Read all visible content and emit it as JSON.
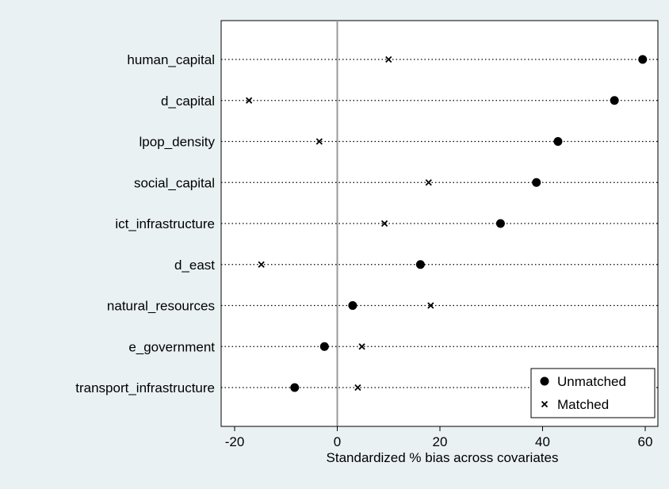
{
  "chart_data": {
    "type": "scatter",
    "title": "",
    "xlabel": "Standardized % bias across covariates",
    "ylabel": "",
    "xlim": [
      -23,
      62
    ],
    "xticks": [
      -20,
      0,
      20,
      40,
      60
    ],
    "grid": false,
    "reference_line_x": 0,
    "legend_position": "bottom-right",
    "categories": [
      "human_capital",
      "d_capital",
      "lpop_density",
      "social_capital",
      "ict_infrastructure",
      "d_east",
      "natural_resources",
      "e_government",
      "transport_infrastructure"
    ],
    "series": [
      {
        "name": "Unmatched",
        "marker": "filled-circle",
        "color": "#000000",
        "values": [
          59.5,
          54,
          43,
          38.8,
          31.8,
          16.2,
          3,
          -2.5,
          -8.3
        ]
      },
      {
        "name": "Matched",
        "marker": "x",
        "color": "#000000",
        "values": [
          10,
          -17.2,
          -3.5,
          17.8,
          9.2,
          -14.8,
          18.2,
          4.8,
          4
        ]
      }
    ]
  }
}
